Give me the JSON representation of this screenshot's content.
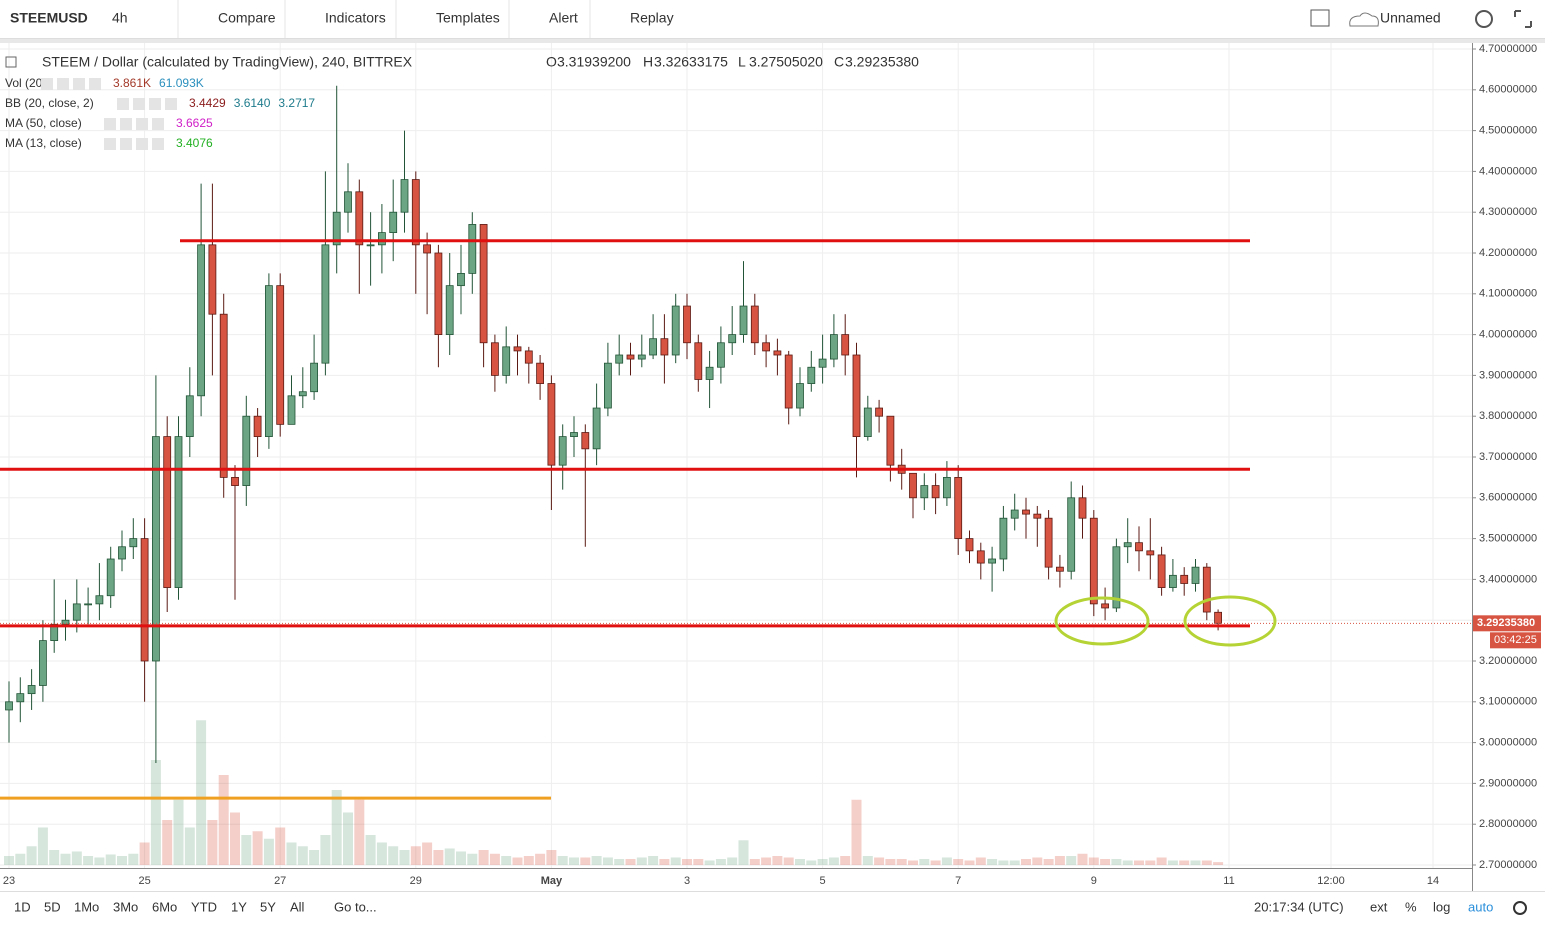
{
  "toolbar": {
    "symbol": "STEEMUSD",
    "interval": "4h",
    "items": [
      "Compare",
      "Indicators",
      "Templates",
      "Alert",
      "Replay"
    ],
    "layout_name": "Unnamed"
  },
  "legend": {
    "title": "STEEM / Dollar (calculated by TradingView), 240, BITTREX",
    "ohlc": [
      {
        "key": "O",
        "text": "3.31939200"
      },
      {
        "key": "H",
        "text": "3.32633175"
      },
      {
        "key": "L",
        "text": "3.27505020"
      },
      {
        "key": "C",
        "text": "3.29235380"
      }
    ],
    "indicators": [
      {
        "name": "Vol (20)",
        "values": [
          {
            "text": "3.861K",
            "color": "#a33a2a"
          },
          {
            "text": "61.093K",
            "color": "#2a8fbd"
          }
        ]
      },
      {
        "name": "BB (20, close, 2)",
        "values": [
          {
            "text": "3.4429",
            "color": "#8b1c1c"
          },
          {
            "text": "3.6140",
            "color": "#1e7b8c"
          },
          {
            "text": "3.2717",
            "color": "#1e7b8c"
          }
        ]
      },
      {
        "name": "MA (50, close)",
        "values": [
          {
            "text": "3.6625",
            "color": "#d020c8"
          }
        ]
      },
      {
        "name": "MA (13, close)",
        "values": [
          {
            "text": "3.4076",
            "color": "#22b022"
          }
        ]
      }
    ]
  },
  "chart_data": {
    "type": "candlestick",
    "categories": [
      "23",
      null,
      null,
      null,
      null,
      null,
      null,
      null,
      null,
      null,
      null,
      null,
      "25",
      null,
      null,
      null,
      null,
      null,
      null,
      null,
      null,
      null,
      null,
      null,
      "27",
      null,
      null,
      null,
      null,
      null,
      null,
      null,
      null,
      null,
      null,
      null,
      "29",
      null,
      null,
      null,
      null,
      null,
      null,
      null,
      null,
      null,
      null,
      null,
      "May",
      null,
      null,
      null,
      null,
      null,
      null,
      null,
      null,
      null,
      null,
      null,
      "3",
      null,
      null,
      null,
      null,
      null,
      null,
      null,
      null,
      null,
      null,
      null,
      "5",
      null,
      null,
      null,
      null,
      null,
      null,
      null,
      null,
      null,
      null,
      null,
      "7",
      null,
      null,
      null,
      null,
      null,
      null,
      null,
      null,
      null,
      null,
      null,
      "9",
      null,
      null,
      null,
      null,
      null,
      null,
      null,
      null,
      null,
      null,
      null
    ],
    "future_labels": [
      "11",
      "12:00",
      "14"
    ],
    "open": [
      3.08,
      3.1,
      3.12,
      3.14,
      3.25,
      3.29,
      3.3,
      3.34,
      3.34,
      3.36,
      3.45,
      3.48,
      3.5,
      3.2,
      3.75,
      3.38,
      3.75,
      3.85,
      4.22,
      4.05,
      3.65,
      3.63,
      3.8,
      3.75,
      4.12,
      3.78,
      3.85,
      3.86,
      3.93,
      4.22,
      4.3,
      4.35,
      4.22,
      4.22,
      4.25,
      4.3,
      4.38,
      4.22,
      4.2,
      4.0,
      4.12,
      4.15,
      4.27,
      3.98,
      3.9,
      3.97,
      3.96,
      3.93,
      3.88,
      3.68,
      3.75,
      3.76,
      3.72,
      3.82,
      3.93,
      3.95,
      3.94,
      3.95,
      3.99,
      3.95,
      4.07,
      3.98,
      3.89,
      3.92,
      3.98,
      4.0,
      4.07,
      3.98,
      3.96,
      3.95,
      3.82,
      3.88,
      3.92,
      3.94,
      4.0,
      3.95,
      3.75,
      3.82,
      3.8,
      3.68,
      3.66,
      3.6,
      3.63,
      3.6,
      3.65,
      3.5,
      3.47,
      3.44,
      3.45,
      3.55,
      3.57,
      3.56,
      3.55,
      3.43,
      3.42,
      3.6,
      3.55,
      3.34,
      3.33,
      3.48,
      3.49,
      3.47,
      3.46,
      3.38,
      3.41,
      3.39,
      3.43,
      3.319392
    ],
    "high": [
      3.15,
      3.16,
      3.18,
      3.3,
      3.4,
      3.35,
      3.4,
      3.38,
      3.44,
      3.48,
      3.52,
      3.55,
      3.55,
      3.9,
      3.8,
      3.8,
      3.92,
      4.37,
      4.37,
      4.1,
      3.68,
      3.85,
      3.82,
      4.15,
      4.15,
      3.9,
      3.92,
      4.0,
      4.4,
      4.61,
      4.42,
      4.38,
      4.3,
      4.32,
      4.38,
      4.5,
      4.4,
      4.25,
      4.22,
      4.2,
      4.22,
      4.3,
      4.25,
      4.0,
      4.02,
      4.0,
      3.97,
      3.95,
      3.9,
      3.78,
      3.8,
      3.78,
      3.88,
      3.98,
      4.0,
      3.98,
      4.0,
      4.05,
      4.05,
      4.1,
      4.1,
      4.0,
      3.96,
      4.02,
      4.07,
      4.18,
      4.1,
      4.0,
      3.99,
      3.96,
      3.92,
      3.96,
      4.0,
      4.05,
      4.05,
      3.98,
      3.85,
      3.84,
      3.8,
      3.72,
      3.66,
      3.66,
      3.66,
      3.69,
      3.68,
      3.52,
      3.49,
      3.48,
      3.58,
      3.61,
      3.6,
      3.58,
      3.57,
      3.46,
      3.64,
      3.63,
      3.57,
      3.38,
      3.5,
      3.55,
      3.53,
      3.55,
      3.48,
      3.45,
      3.43,
      3.45,
      3.44,
      3.32633175
    ],
    "low": [
      3.0,
      3.05,
      3.08,
      3.1,
      3.22,
      3.25,
      3.27,
      3.29,
      3.3,
      3.33,
      3.42,
      3.45,
      3.1,
      2.95,
      3.32,
      3.35,
      3.7,
      3.8,
      3.9,
      3.6,
      3.35,
      3.58,
      3.7,
      3.72,
      3.75,
      3.78,
      3.82,
      3.84,
      3.9,
      4.15,
      4.25,
      4.1,
      4.12,
      4.15,
      4.18,
      4.25,
      4.1,
      4.05,
      3.92,
      3.95,
      4.05,
      4.1,
      3.92,
      3.86,
      3.88,
      3.9,
      3.88,
      3.84,
      3.57,
      3.62,
      3.7,
      3.48,
      3.68,
      3.8,
      3.9,
      3.9,
      3.92,
      3.94,
      3.88,
      3.93,
      3.94,
      3.86,
      3.82,
      3.88,
      3.95,
      3.98,
      3.95,
      3.92,
      3.9,
      3.78,
      3.8,
      3.86,
      3.88,
      3.92,
      3.9,
      3.65,
      3.74,
      3.76,
      3.64,
      3.62,
      3.55,
      3.57,
      3.56,
      3.58,
      3.46,
      3.44,
      3.4,
      3.37,
      3.42,
      3.52,
      3.5,
      3.48,
      3.4,
      3.38,
      3.4,
      3.5,
      3.31,
      3.3,
      3.32,
      3.44,
      3.42,
      3.4,
      3.36,
      3.37,
      3.36,
      3.37,
      3.3,
      3.2750502
    ],
    "close": [
      3.1,
      3.12,
      3.14,
      3.25,
      3.29,
      3.3,
      3.34,
      3.34,
      3.36,
      3.45,
      3.48,
      3.5,
      3.2,
      3.75,
      3.38,
      3.75,
      3.85,
      4.22,
      4.05,
      3.65,
      3.63,
      3.8,
      3.75,
      4.12,
      3.78,
      3.85,
      3.86,
      3.93,
      4.22,
      4.3,
      4.35,
      4.22,
      4.22,
      4.25,
      4.3,
      4.38,
      4.22,
      4.2,
      4.0,
      4.12,
      4.15,
      4.27,
      3.98,
      3.9,
      3.97,
      3.96,
      3.93,
      3.88,
      3.68,
      3.75,
      3.76,
      3.72,
      3.82,
      3.93,
      3.95,
      3.94,
      3.95,
      3.99,
      3.95,
      4.07,
      3.98,
      3.89,
      3.92,
      3.98,
      4.0,
      4.07,
      3.98,
      3.96,
      3.95,
      3.82,
      3.88,
      3.92,
      3.94,
      4.0,
      3.95,
      3.75,
      3.82,
      3.8,
      3.68,
      3.66,
      3.6,
      3.63,
      3.6,
      3.65,
      3.5,
      3.47,
      3.44,
      3.45,
      3.55,
      3.57,
      3.56,
      3.55,
      3.43,
      3.42,
      3.6,
      3.55,
      3.34,
      3.33,
      3.48,
      3.49,
      3.47,
      3.46,
      3.38,
      3.41,
      3.39,
      3.43,
      3.32,
      3.2923538
    ],
    "volume": [
      12,
      15,
      25,
      50,
      20,
      15,
      18,
      12,
      10,
      14,
      12,
      15,
      30,
      140,
      60,
      87,
      50,
      193,
      60,
      120,
      70,
      40,
      45,
      35,
      50,
      30,
      25,
      20,
      40,
      100,
      70,
      87,
      40,
      30,
      25,
      20,
      25,
      30,
      20,
      22,
      18,
      15,
      20,
      15,
      12,
      10,
      12,
      15,
      20,
      12,
      10,
      10,
      12,
      10,
      8,
      8,
      10,
      12,
      8,
      10,
      8,
      8,
      6,
      8,
      10,
      33,
      8,
      10,
      12,
      10,
      8,
      6,
      8,
      10,
      12,
      87,
      12,
      10,
      8,
      8,
      6,
      8,
      6,
      10,
      8,
      6,
      10,
      8,
      6,
      6,
      8,
      10,
      8,
      12,
      12,
      15,
      10,
      8,
      8,
      6,
      6,
      6,
      10,
      6,
      6,
      6,
      6,
      3.861
    ],
    "up_color": "#6ba583",
    "down_color": "#d75442",
    "ylim": [
      2.7,
      4.7
    ],
    "yticks": [
      {
        "value": 2.7,
        "label": "2.70000000"
      },
      {
        "value": 2.8,
        "label": "2.80000000"
      },
      {
        "value": 2.9,
        "label": "2.90000000"
      },
      {
        "value": 3.0,
        "label": "3.00000000"
      },
      {
        "value": 3.1,
        "label": "3.10000000"
      },
      {
        "value": 3.2,
        "label": "3.20000000"
      },
      {
        "value": 3.3,
        "label": "3.30000000"
      },
      {
        "value": 3.4,
        "label": "3.40000000"
      },
      {
        "value": 3.5,
        "label": "3.50000000"
      },
      {
        "value": 3.6,
        "label": "3.60000000"
      },
      {
        "value": 3.7,
        "label": "3.70000000"
      },
      {
        "value": 3.8,
        "label": "3.80000000"
      },
      {
        "value": 3.9,
        "label": "3.90000000"
      },
      {
        "value": 4.0,
        "label": "4.00000000"
      },
      {
        "value": 4.1,
        "label": "4.10000000"
      },
      {
        "value": 4.2,
        "label": "4.20000000"
      },
      {
        "value": 4.3,
        "label": "4.30000000"
      },
      {
        "value": 4.4,
        "label": "4.40000000"
      },
      {
        "value": 4.5,
        "label": "4.50000000"
      },
      {
        "value": 4.6,
        "label": "4.60000000"
      },
      {
        "value": 4.7,
        "label": "4.70000000"
      }
    ],
    "last_price_label": "3.29235380",
    "countdown": "03:42:25",
    "levels": [
      {
        "value": 4.23,
        "color": "#e01010"
      },
      {
        "value": 3.67,
        "color": "#e01010"
      },
      {
        "value": 3.286,
        "color": "#e01010"
      },
      {
        "value": 2.864,
        "color": "#f0a020"
      }
    ],
    "grid": true
  },
  "bottom_bar": {
    "ranges": [
      "1D",
      "5D",
      "1Mo",
      "3Mo",
      "6Mo",
      "YTD",
      "1Y",
      "5Y",
      "All"
    ],
    "goto": "Go to...",
    "clock": "20:17:34 (UTC)",
    "options": [
      "ext",
      "%",
      "log",
      "auto"
    ]
  }
}
